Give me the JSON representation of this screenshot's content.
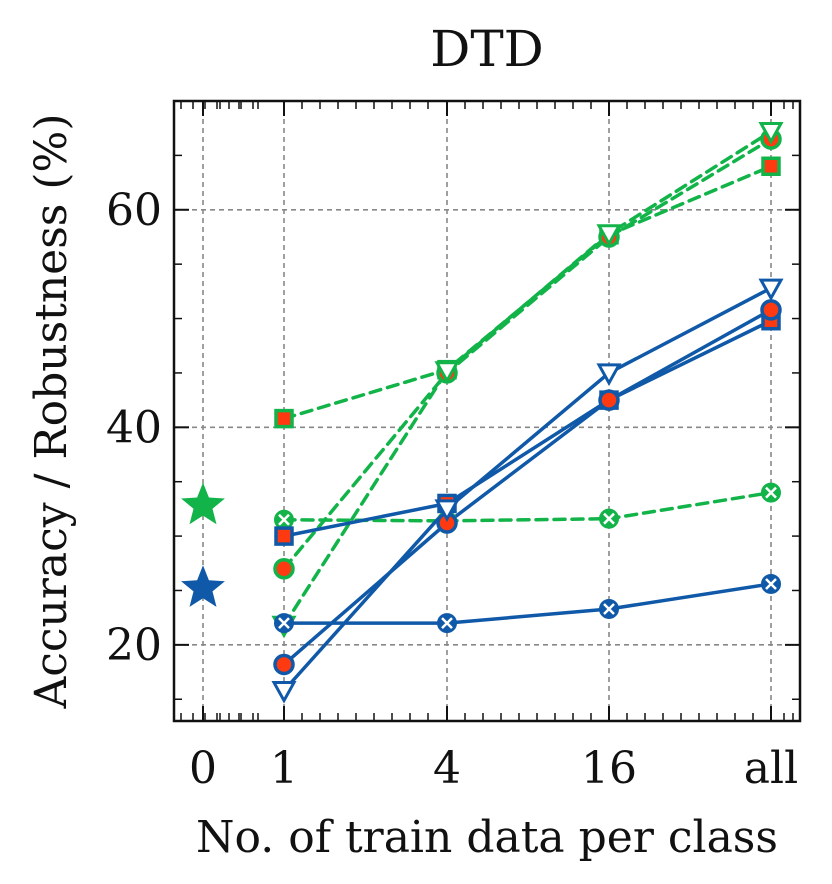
{
  "chart_data": {
    "type": "line",
    "title": "DTD",
    "xlabel": "No. of train data per class",
    "ylabel": "Accuracy / Robustness (%)",
    "categories": [
      "0",
      "1",
      "4",
      "16",
      "all"
    ],
    "ylim": [
      13,
      70
    ],
    "yticks": [
      20,
      40,
      60
    ],
    "grid": true,
    "colors": {
      "green": "#12b44a",
      "blue": "#1059a8",
      "red_fill": "#ff3a10"
    },
    "zero_shot": [
      {
        "name": "zero-shot green",
        "color": "green",
        "value": 32.8
      },
      {
        "name": "zero-shot blue",
        "color": "blue",
        "value": 25.2
      }
    ],
    "series": [
      {
        "name": "green dashed squares",
        "color": "green",
        "dashed": true,
        "marker": "square",
        "x": [
          "1",
          "4",
          "16",
          "all"
        ],
        "values": [
          40.8,
          45.3,
          57.7,
          64.0
        ]
      },
      {
        "name": "green dashed circles",
        "color": "green",
        "dashed": true,
        "marker": "circle",
        "x": [
          "1",
          "4",
          "16",
          "all"
        ],
        "values": [
          27.0,
          45.0,
          57.5,
          66.5
        ]
      },
      {
        "name": "green dashed triangles",
        "color": "green",
        "dashed": true,
        "marker": "triangle",
        "x": [
          "1",
          "4",
          "16",
          "all"
        ],
        "values": [
          21.8,
          45.2,
          57.8,
          67.2
        ]
      },
      {
        "name": "green dashed crosses",
        "color": "green",
        "dashed": true,
        "marker": "x",
        "x": [
          "1",
          "4",
          "16",
          "all"
        ],
        "values": [
          31.5,
          31.4,
          31.6,
          34.0
        ]
      },
      {
        "name": "blue solid squares",
        "color": "blue",
        "dashed": false,
        "marker": "square",
        "x": [
          "1",
          "4",
          "16",
          "all"
        ],
        "values": [
          30.0,
          33.0,
          42.5,
          49.8
        ]
      },
      {
        "name": "blue solid circles",
        "color": "blue",
        "dashed": false,
        "marker": "circle",
        "x": [
          "1",
          "4",
          "16",
          "all"
        ],
        "values": [
          18.2,
          31.2,
          42.5,
          50.8
        ]
      },
      {
        "name": "blue solid triangles",
        "color": "blue",
        "dashed": false,
        "marker": "triangle",
        "x": [
          "1",
          "4",
          "16",
          "all"
        ],
        "values": [
          15.8,
          32.5,
          45.0,
          52.8
        ]
      },
      {
        "name": "blue solid crosses",
        "color": "blue",
        "dashed": false,
        "marker": "x",
        "x": [
          "1",
          "4",
          "16",
          "all"
        ],
        "values": [
          22.0,
          22.0,
          23.3,
          25.6
        ]
      }
    ]
  }
}
